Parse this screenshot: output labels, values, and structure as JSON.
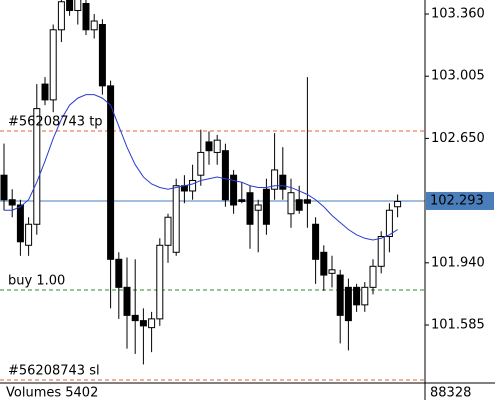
{
  "chart_data": {
    "type": "candlestick",
    "ylim": [
      101.254,
      103.44
    ],
    "yticks": [
      {
        "value": 103.36,
        "label": "103.360"
      },
      {
        "value": 103.005,
        "label": "103.005"
      },
      {
        "value": 102.65,
        "label": "102.650"
      },
      {
        "value": 101.94,
        "label": "101.940"
      },
      {
        "value": 101.585,
        "label": "101.585"
      }
    ],
    "candles": [
      [
        102.44,
        102.62,
        102.24,
        102.3
      ],
      [
        102.3,
        102.36,
        102.2,
        102.27
      ],
      [
        102.27,
        102.3,
        101.98,
        102.06
      ],
      [
        102.04,
        102.2,
        101.98,
        102.16
      ],
      [
        102.16,
        102.96,
        102.1,
        102.82
      ],
      [
        102.96,
        103.0,
        102.84,
        102.87
      ],
      [
        102.87,
        103.3,
        102.8,
        103.27
      ],
      [
        103.27,
        103.45,
        103.2,
        103.43
      ],
      [
        103.5,
        103.55,
        103.35,
        103.38
      ],
      [
        103.38,
        103.5,
        103.3,
        103.45
      ],
      [
        103.42,
        103.44,
        103.24,
        103.27
      ],
      [
        103.27,
        103.36,
        103.22,
        103.32
      ],
      [
        103.3,
        103.33,
        102.9,
        102.95
      ],
      [
        102.95,
        102.98,
        101.68,
        101.96
      ],
      [
        101.96,
        102.0,
        101.62,
        101.8
      ],
      [
        101.8,
        101.97,
        101.45,
        101.64
      ],
      [
        101.64,
        101.96,
        101.42,
        101.61
      ],
      [
        101.61,
        101.68,
        101.36,
        101.58
      ],
      [
        101.57,
        101.66,
        101.43,
        101.62
      ],
      [
        101.62,
        102.08,
        101.58,
        102.04
      ],
      [
        102.04,
        102.22,
        101.94,
        102.2
      ],
      [
        102.0,
        102.42,
        101.98,
        102.38
      ],
      [
        102.38,
        102.44,
        102.28,
        102.35
      ],
      [
        102.35,
        102.5,
        102.3,
        102.41
      ],
      [
        102.44,
        102.7,
        102.38,
        102.57
      ],
      [
        102.63,
        102.69,
        102.5,
        102.58
      ],
      [
        102.57,
        102.67,
        102.5,
        102.64
      ],
      [
        102.58,
        102.62,
        102.26,
        102.3
      ],
      [
        102.44,
        102.47,
        102.22,
        102.27
      ],
      [
        102.3,
        102.4,
        102.28,
        102.29
      ],
      [
        102.34,
        102.38,
        102.02,
        102.16
      ],
      [
        102.24,
        102.3,
        102.0,
        102.27
      ],
      [
        102.36,
        102.42,
        102.1,
        102.16
      ],
      [
        102.36,
        102.68,
        102.3,
        102.47
      ],
      [
        102.44,
        102.6,
        102.3,
        102.36
      ],
      [
        102.22,
        102.42,
        102.14,
        102.34
      ],
      [
        102.3,
        102.38,
        102.22,
        102.24
      ],
      [
        102.3,
        103.0,
        102.14,
        102.28
      ],
      [
        102.16,
        102.2,
        101.82,
        101.96
      ],
      [
        102.0,
        102.04,
        101.78,
        101.87
      ],
      [
        101.88,
        101.98,
        101.8,
        101.9
      ],
      [
        101.87,
        101.9,
        101.48,
        101.64
      ],
      [
        101.8,
        101.85,
        101.44,
        101.61
      ],
      [
        101.8,
        101.82,
        101.66,
        101.7
      ],
      [
        101.7,
        101.83,
        101.66,
        101.8
      ],
      [
        101.8,
        101.96,
        101.76,
        101.92
      ],
      [
        101.92,
        102.12,
        101.88,
        102.09
      ],
      [
        102.09,
        102.28,
        102.0,
        102.24
      ],
      [
        102.26,
        102.33,
        102.2,
        102.29
      ]
    ],
    "ma": [
      102.24,
      102.24,
      102.26,
      102.3,
      102.4,
      102.52,
      102.65,
      102.76,
      102.84,
      102.88,
      102.9,
      102.9,
      102.88,
      102.84,
      102.72,
      102.6,
      102.5,
      102.43,
      102.39,
      102.37,
      102.36,
      102.37,
      102.38,
      102.39,
      102.41,
      102.42,
      102.43,
      102.42,
      102.41,
      102.4,
      102.38,
      102.37,
      102.37,
      102.38,
      102.38,
      102.37,
      102.35,
      102.33,
      102.3,
      102.26,
      102.21,
      102.17,
      102.13,
      102.1,
      102.08,
      102.07,
      102.08,
      102.1,
      102.13
    ],
    "ma_color": "#2b3ccf",
    "levels": [
      {
        "label": "#56208743 tp",
        "value": 102.692,
        "color": "#e0603a"
      },
      {
        "label": "buy 1.00",
        "value": 101.785,
        "color": "#2e8b2e"
      },
      {
        "label": "#56208743 sl",
        "value": 101.271,
        "color": "#e0603a"
      }
    ],
    "current_price": 102.293,
    "current_color": "#4a7ebb",
    "volume_label": "Volumes 5402",
    "volume_axis_label": "88328"
  }
}
